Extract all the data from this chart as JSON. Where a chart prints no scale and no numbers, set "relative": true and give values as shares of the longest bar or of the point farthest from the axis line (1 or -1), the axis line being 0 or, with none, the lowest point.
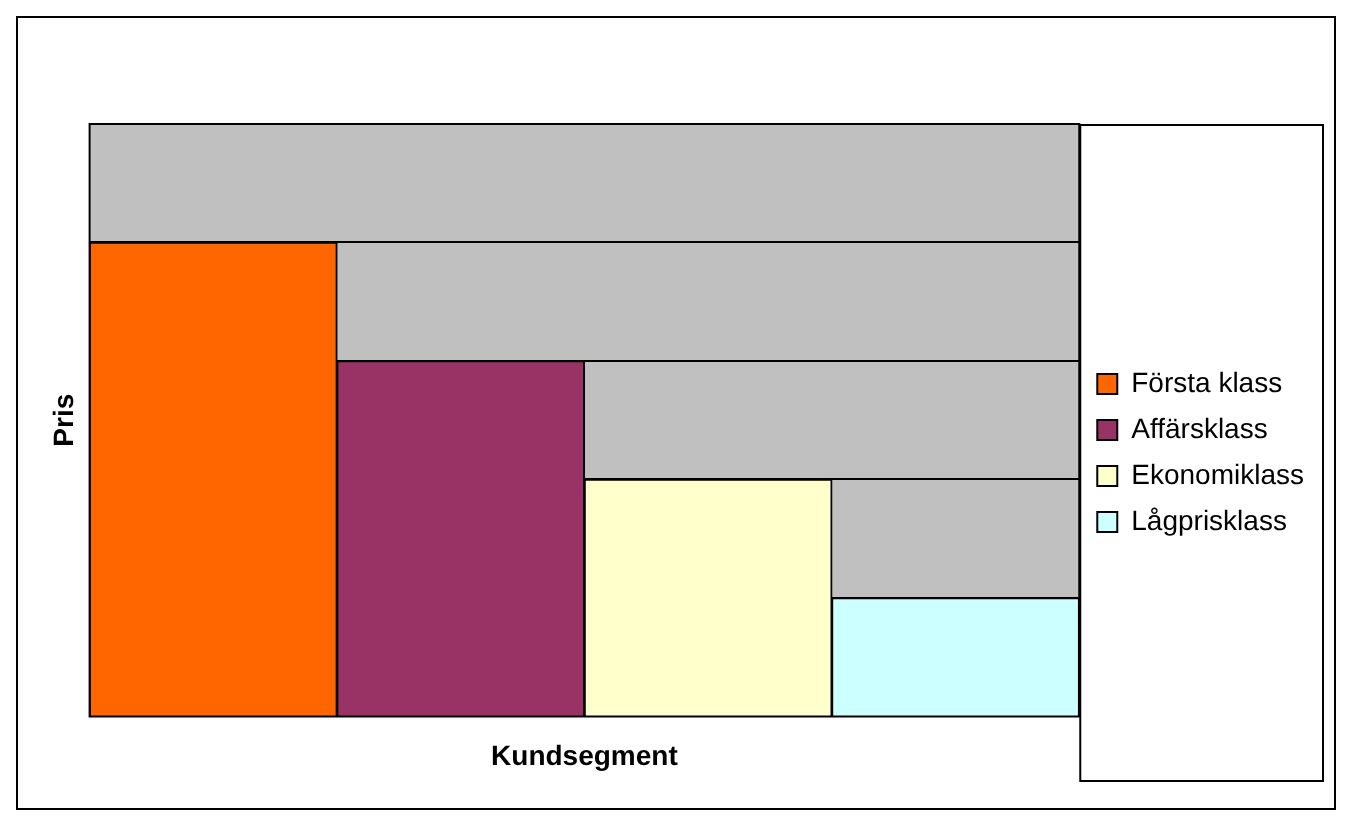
{
  "chart_data": {
    "type": "bar",
    "relative": true,
    "xlabel": "Kundsegment",
    "ylabel": "Pris",
    "categories": [
      null
    ],
    "series": [
      {
        "name": "Första klass",
        "color": "#ff6600",
        "values": [
          1
        ]
      },
      {
        "name": "Affärsklass",
        "color": "#993366",
        "values": [
          0.75
        ]
      },
      {
        "name": "Ekonomiklass",
        "color": "#ffffcc",
        "values": [
          0.5
        ]
      },
      {
        "name": "Lågprisklass",
        "color": "#ccffff",
        "values": [
          0.25
        ]
      }
    ],
    "grid": "y",
    "legend": "right"
  }
}
